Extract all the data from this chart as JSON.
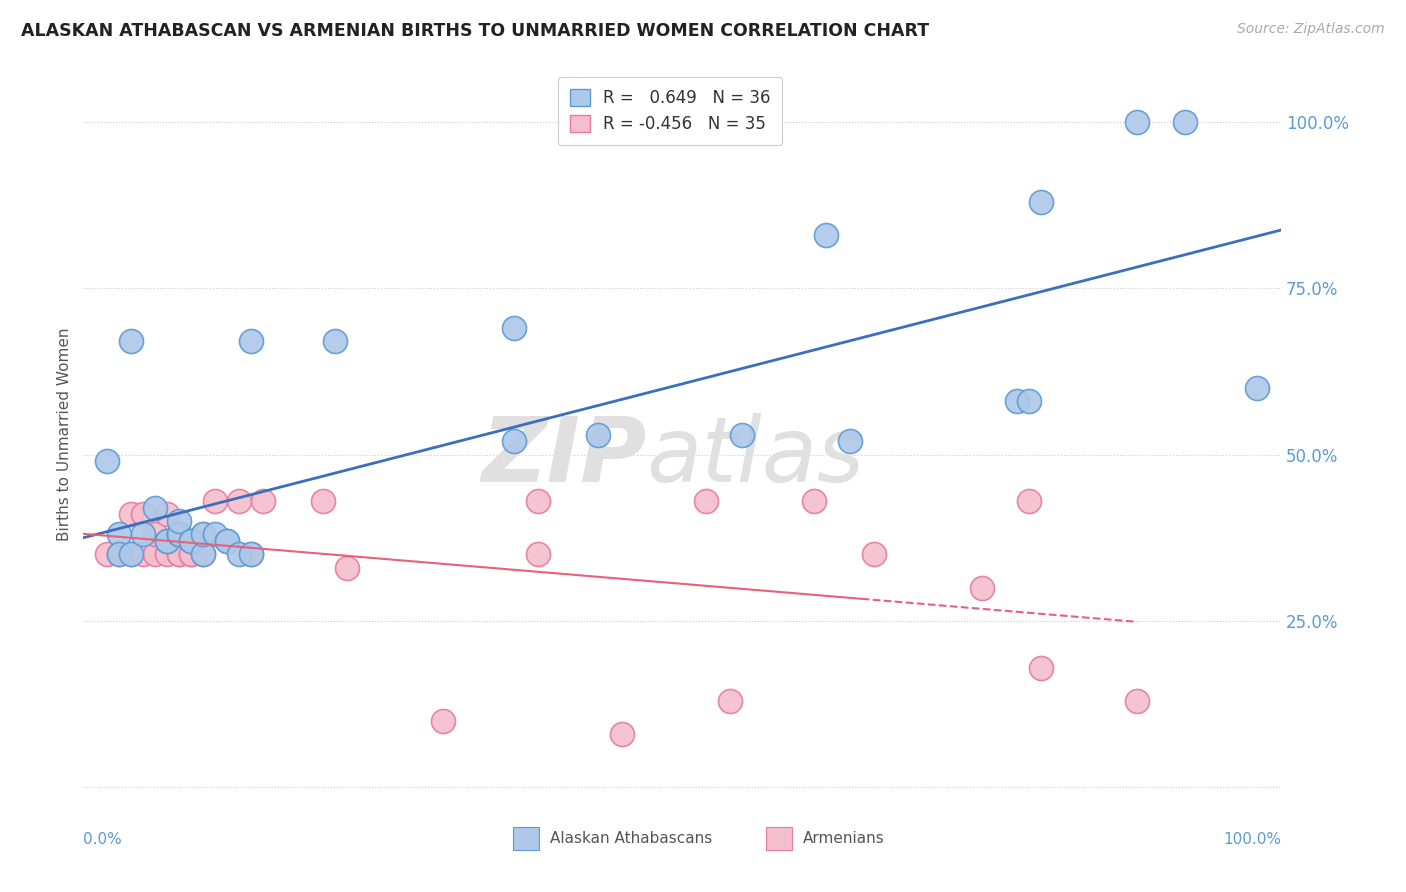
{
  "title": "ALASKAN ATHABASCAN VS ARMENIAN BIRTHS TO UNMARRIED WOMEN CORRELATION CHART",
  "source": "Source: ZipAtlas.com",
  "ylabel": "Births to Unmarried Women",
  "blue_color": "#adc8e8",
  "blue_edge_color": "#5b9bd5",
  "blue_line_color": "#3a6fbd",
  "pink_color": "#f4bece",
  "pink_edge_color": "#e87a9a",
  "pink_line_color": "#e8607a",
  "blue_r_val": "0.649",
  "blue_n_val": "36",
  "pink_r_val": "-0.456",
  "pink_n_val": "35",
  "tick_label_color": "#5b9bd5",
  "right_tick_color": "#5b9bd5",
  "blue_scatter_x": [
    0.02,
    0.04,
    0.14,
    0.21,
    0.36,
    0.36,
    0.43,
    0.55,
    0.62,
    0.64,
    0.78,
    0.79,
    0.88,
    0.92,
    0.98,
    0.03,
    0.03,
    0.04,
    0.05,
    0.06,
    0.07,
    0.07,
    0.08,
    0.08,
    0.08,
    0.08,
    0.09,
    0.09,
    0.1,
    0.1,
    0.11,
    0.12,
    0.12,
    0.13,
    0.14,
    0.8
  ],
  "blue_scatter_y": [
    0.49,
    0.67,
    0.67,
    0.67,
    0.69,
    0.52,
    0.53,
    0.53,
    0.83,
    0.52,
    0.58,
    0.58,
    1.0,
    1.0,
    0.6,
    0.38,
    0.35,
    0.35,
    0.38,
    0.42,
    0.37,
    0.37,
    0.38,
    0.38,
    0.38,
    0.4,
    0.37,
    0.37,
    0.35,
    0.38,
    0.38,
    0.37,
    0.37,
    0.35,
    0.35,
    0.88
  ],
  "pink_scatter_x": [
    0.02,
    0.03,
    0.04,
    0.04,
    0.05,
    0.05,
    0.06,
    0.06,
    0.07,
    0.07,
    0.08,
    0.08,
    0.08,
    0.09,
    0.09,
    0.1,
    0.1,
    0.11,
    0.13,
    0.14,
    0.15,
    0.2,
    0.22,
    0.38,
    0.38,
    0.52,
    0.54,
    0.61,
    0.66,
    0.75,
    0.79,
    0.8,
    0.88,
    0.3,
    0.45
  ],
  "pink_scatter_y": [
    0.35,
    0.35,
    0.35,
    0.41,
    0.35,
    0.41,
    0.35,
    0.38,
    0.35,
    0.41,
    0.35,
    0.35,
    0.38,
    0.35,
    0.35,
    0.35,
    0.38,
    0.43,
    0.43,
    0.35,
    0.43,
    0.43,
    0.33,
    0.43,
    0.35,
    0.43,
    0.13,
    0.43,
    0.35,
    0.3,
    0.43,
    0.18,
    0.13,
    0.1,
    0.08
  ],
  "ytick_positions": [
    0.0,
    0.25,
    0.5,
    0.75,
    1.0
  ],
  "ytick_labels_right": [
    "",
    "25.0%",
    "50.0%",
    "75.0%",
    "100.0%"
  ],
  "background_color": "#ffffff",
  "grid_color": "#cccccc",
  "watermark_zip": "ZIP",
  "watermark_atlas": "atlas",
  "watermark_color": "#e0e0e0"
}
